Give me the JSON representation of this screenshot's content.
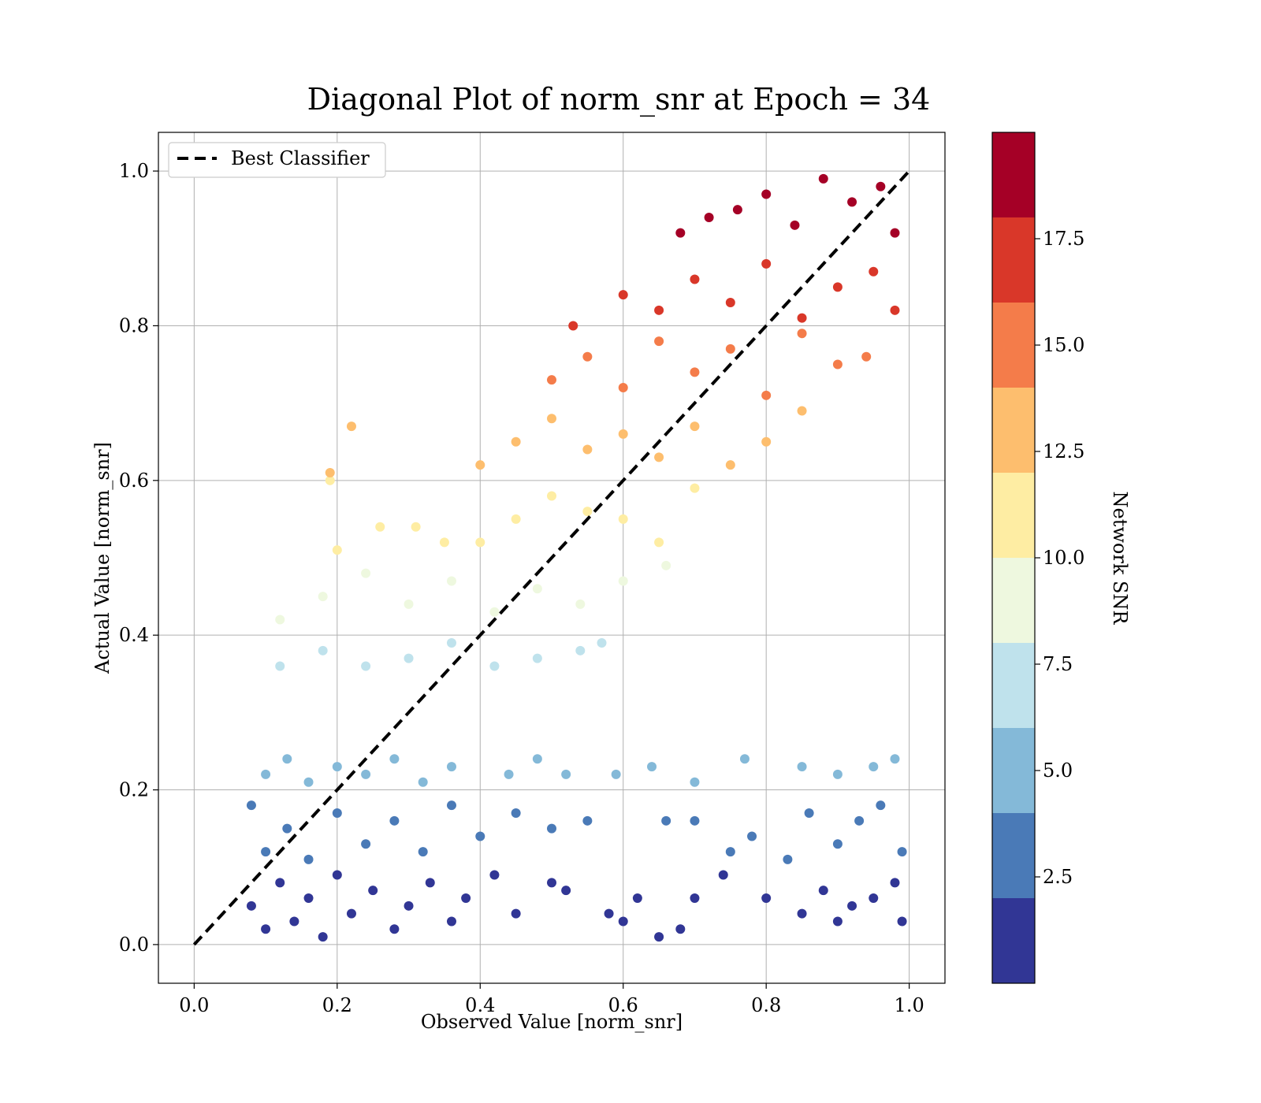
{
  "chart_data": {
    "type": "scatter",
    "title": "Diagonal Plot of norm_snr at Epoch = 34",
    "xlabel": "Observed Value [norm_snr]",
    "ylabel": "Actual Value [norm_snr]",
    "xlim": [
      -0.05,
      1.05
    ],
    "ylim": [
      -0.05,
      1.05
    ],
    "xticks": [
      0.0,
      0.2,
      0.4,
      0.6,
      0.8,
      1.0
    ],
    "yticks": [
      0.0,
      0.2,
      0.4,
      0.6,
      0.8,
      1.0
    ],
    "xtick_labels": [
      "0.0",
      "0.2",
      "0.4",
      "0.6",
      "0.8",
      "1.0"
    ],
    "ytick_labels": [
      "0.0",
      "0.2",
      "0.4",
      "0.6",
      "0.8",
      "1.0"
    ],
    "grid": true,
    "legend": {
      "placement": "upper-left",
      "entries": [
        "Best Classifier"
      ]
    },
    "reference_line": {
      "name": "Best Classifier",
      "style": "dashed",
      "color": "#000000",
      "x": [
        0.0,
        1.0
      ],
      "y": [
        0.0,
        1.0
      ]
    },
    "colorbar": {
      "label": "Network SNR",
      "range": [
        0,
        20
      ],
      "ticks": [
        2.5,
        5.0,
        7.5,
        10.0,
        12.5,
        15.0,
        17.5
      ],
      "tick_labels": [
        "2.5",
        "5.0",
        "7.5",
        "10.0",
        "12.5",
        "15.0",
        "17.5"
      ],
      "bins": [
        {
          "min": 0.0,
          "max": 2.0,
          "color": "#313695"
        },
        {
          "min": 2.0,
          "max": 4.0,
          "color": "#4a7ab7"
        },
        {
          "min": 4.0,
          "max": 6.0,
          "color": "#84b9d8"
        },
        {
          "min": 6.0,
          "max": 8.0,
          "color": "#bfe2ec"
        },
        {
          "min": 8.0,
          "max": 10.0,
          "color": "#eef8df"
        },
        {
          "min": 10.0,
          "max": 12.0,
          "color": "#feeda3"
        },
        {
          "min": 12.0,
          "max": 14.0,
          "color": "#fdbe6e"
        },
        {
          "min": 14.0,
          "max": 16.0,
          "color": "#f47c4a"
        },
        {
          "min": 16.0,
          "max": 18.0,
          "color": "#d93729"
        },
        {
          "min": 18.0,
          "max": 20.0,
          "color": "#a50026"
        }
      ]
    },
    "series": [
      {
        "snr_bin": "0-2",
        "color": "#313695",
        "points": [
          [
            0.08,
            0.05
          ],
          [
            0.1,
            0.02
          ],
          [
            0.12,
            0.08
          ],
          [
            0.14,
            0.03
          ],
          [
            0.16,
            0.06
          ],
          [
            0.18,
            0.01
          ],
          [
            0.2,
            0.09
          ],
          [
            0.22,
            0.04
          ],
          [
            0.25,
            0.07
          ],
          [
            0.28,
            0.02
          ],
          [
            0.3,
            0.05
          ],
          [
            0.33,
            0.08
          ],
          [
            0.36,
            0.03
          ],
          [
            0.38,
            0.06
          ],
          [
            0.42,
            0.09
          ],
          [
            0.45,
            0.04
          ],
          [
            0.5,
            0.08
          ],
          [
            0.52,
            0.07
          ],
          [
            0.58,
            0.04
          ],
          [
            0.6,
            0.03
          ],
          [
            0.62,
            0.06
          ],
          [
            0.65,
            0.01
          ],
          [
            0.68,
            0.02
          ],
          [
            0.7,
            0.06
          ],
          [
            0.74,
            0.09
          ],
          [
            0.8,
            0.06
          ],
          [
            0.85,
            0.04
          ],
          [
            0.88,
            0.07
          ],
          [
            0.9,
            0.03
          ],
          [
            0.92,
            0.05
          ],
          [
            0.95,
            0.06
          ],
          [
            0.98,
            0.08
          ],
          [
            0.99,
            0.03
          ]
        ]
      },
      {
        "snr_bin": "2-4",
        "color": "#4a7ab7",
        "points": [
          [
            0.08,
            0.18
          ],
          [
            0.1,
            0.12
          ],
          [
            0.13,
            0.15
          ],
          [
            0.16,
            0.11
          ],
          [
            0.2,
            0.17
          ],
          [
            0.24,
            0.13
          ],
          [
            0.28,
            0.16
          ],
          [
            0.32,
            0.12
          ],
          [
            0.36,
            0.18
          ],
          [
            0.4,
            0.14
          ],
          [
            0.45,
            0.17
          ],
          [
            0.5,
            0.15
          ],
          [
            0.55,
            0.16
          ],
          [
            0.66,
            0.16
          ],
          [
            0.7,
            0.16
          ],
          [
            0.75,
            0.12
          ],
          [
            0.78,
            0.14
          ],
          [
            0.83,
            0.11
          ],
          [
            0.86,
            0.17
          ],
          [
            0.9,
            0.13
          ],
          [
            0.93,
            0.16
          ],
          [
            0.96,
            0.18
          ],
          [
            0.99,
            0.12
          ]
        ]
      },
      {
        "snr_bin": "4-6",
        "color": "#84b9d8",
        "points": [
          [
            0.1,
            0.22
          ],
          [
            0.13,
            0.24
          ],
          [
            0.16,
            0.21
          ],
          [
            0.2,
            0.23
          ],
          [
            0.24,
            0.22
          ],
          [
            0.28,
            0.24
          ],
          [
            0.32,
            0.21
          ],
          [
            0.36,
            0.23
          ],
          [
            0.44,
            0.22
          ],
          [
            0.48,
            0.24
          ],
          [
            0.52,
            0.22
          ],
          [
            0.59,
            0.22
          ],
          [
            0.64,
            0.23
          ],
          [
            0.7,
            0.21
          ],
          [
            0.77,
            0.24
          ],
          [
            0.85,
            0.23
          ],
          [
            0.9,
            0.22
          ],
          [
            0.95,
            0.23
          ],
          [
            0.98,
            0.24
          ]
        ]
      },
      {
        "snr_bin": "6-8",
        "color": "#bfe2ec",
        "points": [
          [
            0.12,
            0.36
          ],
          [
            0.18,
            0.38
          ],
          [
            0.24,
            0.36
          ],
          [
            0.3,
            0.37
          ],
          [
            0.36,
            0.39
          ],
          [
            0.42,
            0.36
          ],
          [
            0.48,
            0.37
          ],
          [
            0.54,
            0.38
          ],
          [
            0.57,
            0.39
          ]
        ]
      },
      {
        "snr_bin": "8-10",
        "color": "#eef8df",
        "points": [
          [
            0.12,
            0.42
          ],
          [
            0.18,
            0.45
          ],
          [
            0.24,
            0.48
          ],
          [
            0.3,
            0.44
          ],
          [
            0.36,
            0.47
          ],
          [
            0.42,
            0.43
          ],
          [
            0.48,
            0.46
          ],
          [
            0.54,
            0.44
          ],
          [
            0.6,
            0.47
          ],
          [
            0.66,
            0.49
          ]
        ]
      },
      {
        "snr_bin": "10-12",
        "color": "#feeda3",
        "points": [
          [
            0.19,
            0.6
          ],
          [
            0.2,
            0.51
          ],
          [
            0.26,
            0.54
          ],
          [
            0.31,
            0.54
          ],
          [
            0.35,
            0.52
          ],
          [
            0.4,
            0.52
          ],
          [
            0.45,
            0.55
          ],
          [
            0.5,
            0.58
          ],
          [
            0.55,
            0.56
          ],
          [
            0.6,
            0.55
          ],
          [
            0.65,
            0.52
          ],
          [
            0.7,
            0.59
          ]
        ]
      },
      {
        "snr_bin": "12-14",
        "color": "#fdbe6e",
        "points": [
          [
            0.22,
            0.67
          ],
          [
            0.19,
            0.61
          ],
          [
            0.4,
            0.62
          ],
          [
            0.45,
            0.65
          ],
          [
            0.5,
            0.68
          ],
          [
            0.55,
            0.64
          ],
          [
            0.6,
            0.66
          ],
          [
            0.65,
            0.63
          ],
          [
            0.7,
            0.67
          ],
          [
            0.75,
            0.62
          ],
          [
            0.8,
            0.65
          ],
          [
            0.85,
            0.69
          ]
        ]
      },
      {
        "snr_bin": "14-16",
        "color": "#f47c4a",
        "points": [
          [
            0.5,
            0.73
          ],
          [
            0.55,
            0.76
          ],
          [
            0.6,
            0.72
          ],
          [
            0.65,
            0.78
          ],
          [
            0.7,
            0.74
          ],
          [
            0.75,
            0.77
          ],
          [
            0.8,
            0.71
          ],
          [
            0.85,
            0.79
          ],
          [
            0.9,
            0.75
          ],
          [
            0.94,
            0.76
          ]
        ]
      },
      {
        "snr_bin": "16-18",
        "color": "#d93729",
        "points": [
          [
            0.53,
            0.8
          ],
          [
            0.6,
            0.84
          ],
          [
            0.65,
            0.82
          ],
          [
            0.7,
            0.86
          ],
          [
            0.75,
            0.83
          ],
          [
            0.8,
            0.88
          ],
          [
            0.85,
            0.81
          ],
          [
            0.9,
            0.85
          ],
          [
            0.95,
            0.87
          ],
          [
            0.98,
            0.82
          ]
        ]
      },
      {
        "snr_bin": "18-20",
        "color": "#a50026",
        "points": [
          [
            0.68,
            0.92
          ],
          [
            0.72,
            0.94
          ],
          [
            0.76,
            0.95
          ],
          [
            0.8,
            0.97
          ],
          [
            0.84,
            0.93
          ],
          [
            0.88,
            0.99
          ],
          [
            0.92,
            0.96
          ],
          [
            0.96,
            0.98
          ],
          [
            0.98,
            0.92
          ]
        ]
      }
    ]
  }
}
